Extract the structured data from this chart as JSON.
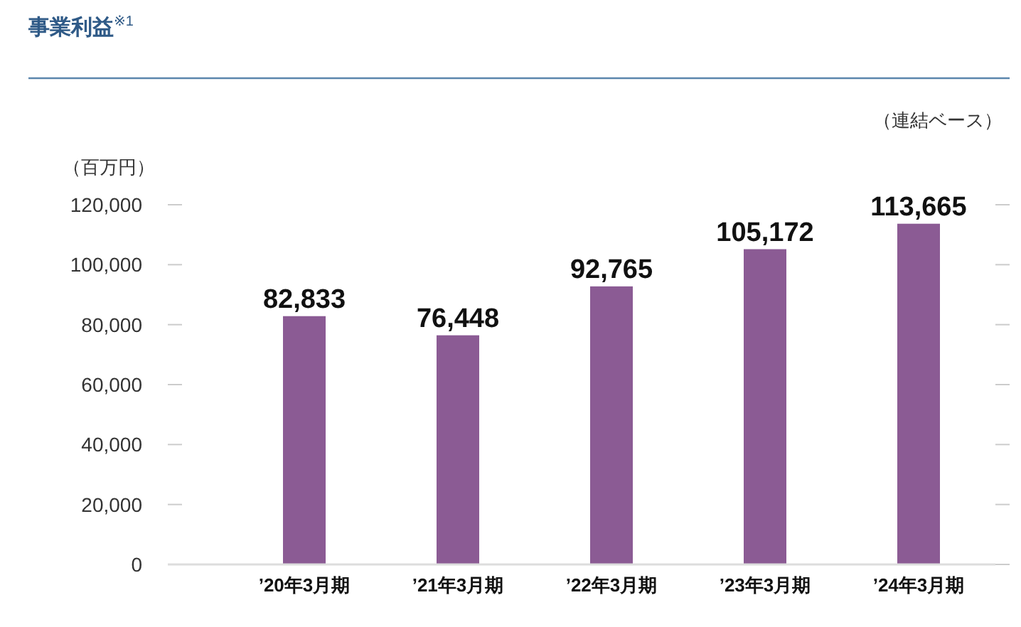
{
  "chart_data": {
    "type": "bar",
    "title": "事業利益$^{※1}$",
    "ylabel": "（百万円）",
    "annotations": [
      "（連結ベース）"
    ],
    "categories": [
      "’20年3月期",
      "’21年3月期",
      "’22年3月期",
      "’23年3月期",
      "’24年3月期"
    ],
    "values": [
      82833,
      76448,
      92765,
      105172,
      113665
    ],
    "color": "#8b5b94",
    "ylim": [
      0,
      120000
    ],
    "yticks": [
      {
        "value": 0,
        "label": "0"
      },
      {
        "value": 20000,
        "label": "20,000"
      },
      {
        "value": 40000,
        "label": "40,000"
      },
      {
        "value": 60000,
        "label": "60,000"
      },
      {
        "value": 80000,
        "label": "80,000"
      },
      {
        "value": 100000,
        "label": "100,000"
      },
      {
        "value": 120000,
        "label": "120,000"
      }
    ],
    "value_labels": [
      "82,833",
      "76,448",
      "92,765",
      "105,172",
      "113,665"
    ],
    "grid": false
  }
}
